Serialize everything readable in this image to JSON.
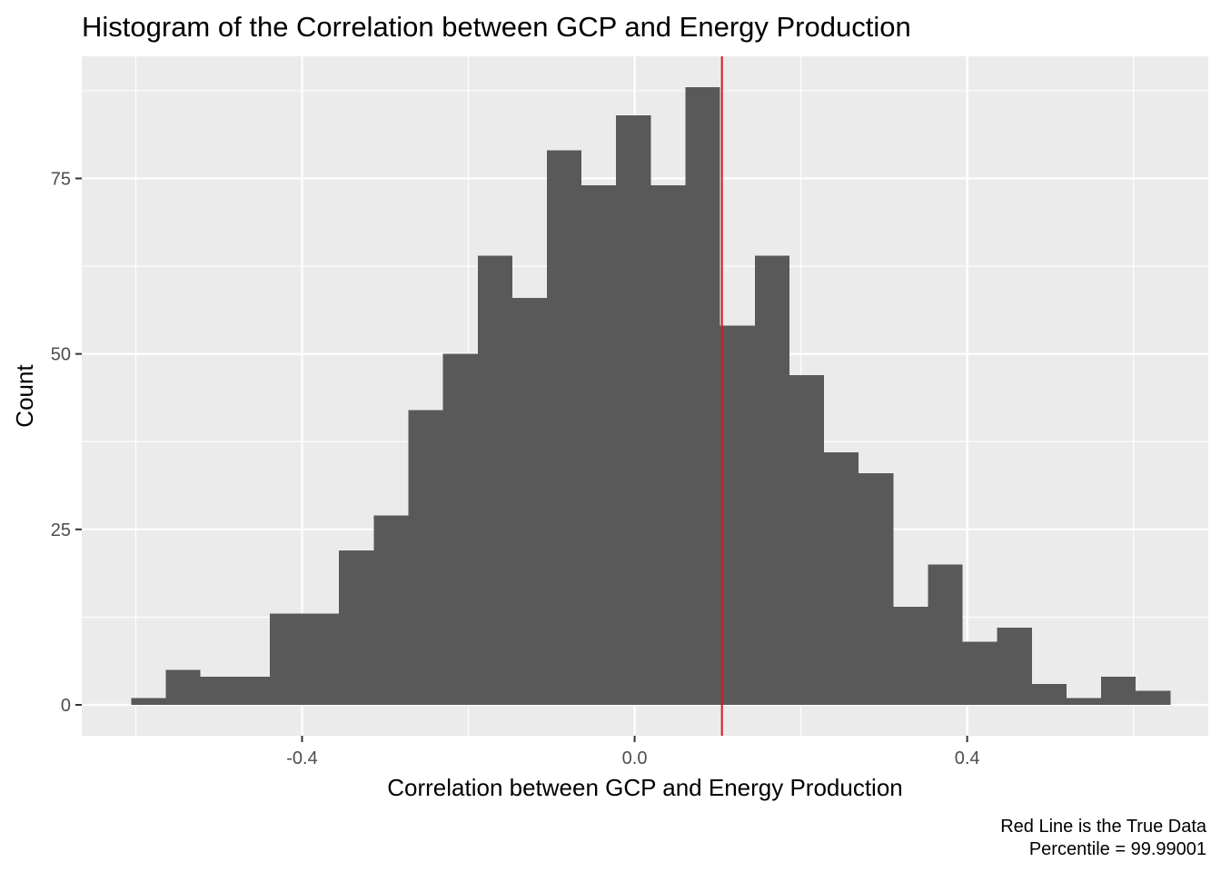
{
  "chart_data": {
    "type": "bar",
    "subtype": "histogram",
    "title": "Histogram of the Correlation between GCP and Energy Production",
    "xlabel": "Correlation between GCP and Energy Production",
    "ylabel": "Count",
    "caption": [
      "Red Line is the True Data",
      "Percentile = 99.99001"
    ],
    "xlim": [
      -0.665,
      0.69
    ],
    "ylim": [
      -4.4,
      92.4
    ],
    "bin_width": 0.0417,
    "bins": [
      {
        "x0": -0.6055,
        "x1": -0.5638,
        "count": 1
      },
      {
        "x0": -0.5638,
        "x1": -0.5222,
        "count": 5
      },
      {
        "x0": -0.5222,
        "x1": -0.4805,
        "count": 4
      },
      {
        "x0": -0.4805,
        "x1": -0.4388,
        "count": 4
      },
      {
        "x0": -0.4388,
        "x1": -0.3972,
        "count": 13
      },
      {
        "x0": -0.3972,
        "x1": -0.3555,
        "count": 13
      },
      {
        "x0": -0.3555,
        "x1": -0.3138,
        "count": 22
      },
      {
        "x0": -0.3138,
        "x1": -0.2722,
        "count": 27
      },
      {
        "x0": -0.2722,
        "x1": -0.2305,
        "count": 42
      },
      {
        "x0": -0.2305,
        "x1": -0.1888,
        "count": 50
      },
      {
        "x0": -0.1888,
        "x1": -0.1472,
        "count": 64
      },
      {
        "x0": -0.1472,
        "x1": -0.1055,
        "count": 58
      },
      {
        "x0": -0.1055,
        "x1": -0.0638,
        "count": 79
      },
      {
        "x0": -0.0638,
        "x1": -0.0222,
        "count": 74
      },
      {
        "x0": -0.0222,
        "x1": 0.0195,
        "count": 84
      },
      {
        "x0": 0.0195,
        "x1": 0.0612,
        "count": 74
      },
      {
        "x0": 0.0612,
        "x1": 0.1028,
        "count": 88
      },
      {
        "x0": 0.1028,
        "x1": 0.1445,
        "count": 54
      },
      {
        "x0": 0.1445,
        "x1": 0.1862,
        "count": 64
      },
      {
        "x0": 0.1862,
        "x1": 0.2278,
        "count": 47
      },
      {
        "x0": 0.2278,
        "x1": 0.2695,
        "count": 36
      },
      {
        "x0": 0.2695,
        "x1": 0.3112,
        "count": 33
      },
      {
        "x0": 0.3112,
        "x1": 0.3528,
        "count": 14
      },
      {
        "x0": 0.3528,
        "x1": 0.3945,
        "count": 20
      },
      {
        "x0": 0.3945,
        "x1": 0.4362,
        "count": 9
      },
      {
        "x0": 0.4362,
        "x1": 0.4778,
        "count": 11
      },
      {
        "x0": 0.4778,
        "x1": 0.5195,
        "count": 3
      },
      {
        "x0": 0.5195,
        "x1": 0.5612,
        "count": 1
      },
      {
        "x0": 0.5612,
        "x1": 0.6028,
        "count": 4
      },
      {
        "x0": 0.6028,
        "x1": 0.6445,
        "count": 2
      }
    ],
    "vline": {
      "x": 0.105,
      "color": "#d7191c"
    },
    "x_ticks": [
      -0.4,
      0.0,
      0.4
    ],
    "x_tick_labels": [
      "-0.4",
      "0.0",
      "0.4"
    ],
    "x_minor_ticks": [
      -0.6,
      -0.2,
      0.2,
      0.6
    ],
    "y_ticks": [
      0,
      25,
      50,
      75
    ],
    "y_tick_labels": [
      "0",
      "25",
      "50",
      "75"
    ],
    "y_minor_ticks": [
      12.5,
      37.5,
      62.5,
      87.5
    ],
    "grid": true,
    "bar_color": "#595959",
    "panel_background": "#ebebeb"
  }
}
